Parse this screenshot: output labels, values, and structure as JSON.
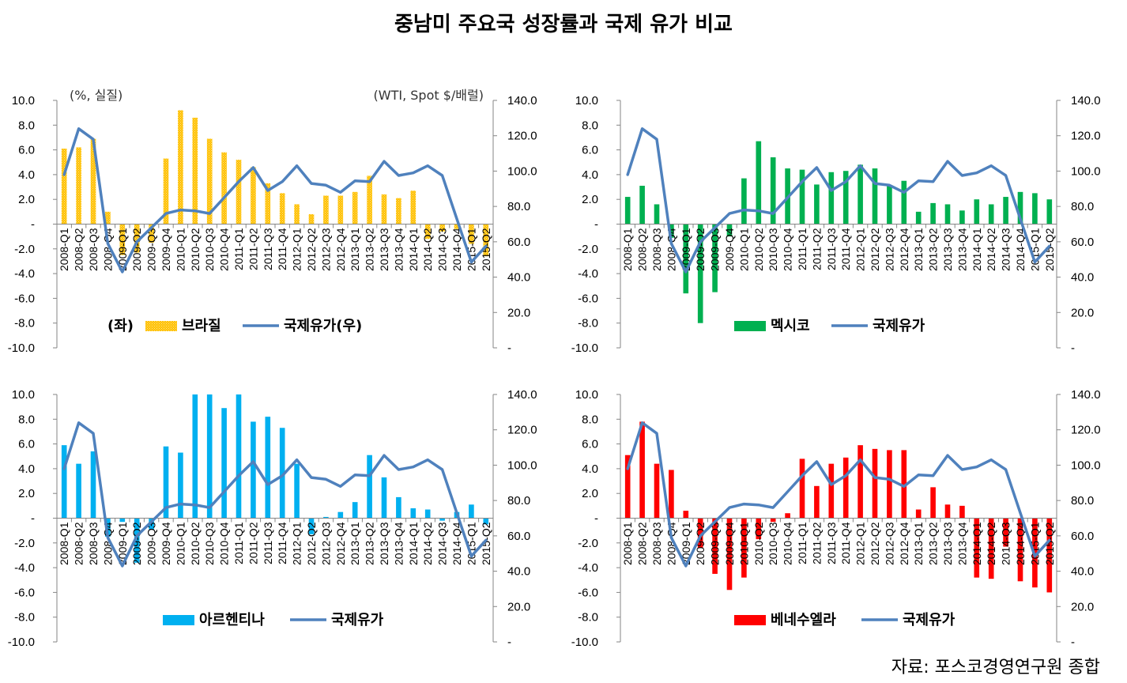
{
  "title": "중남미 주요국 성장률과 국제 유가 비교",
  "source": "자료: 포스코경영연구원 종합",
  "chart_data": [
    {
      "type": "bar",
      "country": "브라질",
      "legend": {
        "prefix": "(좌)",
        "bar_label": "브라질",
        "line_label": "국제유가(우)"
      },
      "left_unit": "(%, 실질)",
      "right_unit": "(WTI, Spot $/배럴)",
      "bar_color": "#FFC000",
      "bar_pattern": true,
      "line_color": "#4F81BD",
      "ylim": [
        -10,
        10
      ],
      "y2lim": [
        0,
        140
      ],
      "left_ticks": [
        "10.0",
        "8.0",
        "6.0",
        "4.0",
        "2.0",
        "-",
        "-2.0",
        "-4.0",
        "-6.0",
        "-8.0",
        "-10.0"
      ],
      "right_ticks": [
        "140.0",
        "120.0",
        "100.0",
        "80.0",
        "60.0",
        "40.0",
        "20.0",
        "-"
      ],
      "categories": [
        "2008-Q1",
        "2008-Q2",
        "2008-Q3",
        "2008-Q4",
        "2009-Q1",
        "2009-Q2",
        "2009-Q3",
        "2009-Q4",
        "2010-Q1",
        "2010-Q2",
        "2010-Q3",
        "2010-Q4",
        "2011-Q1",
        "2011-Q2",
        "2011-Q3",
        "2011-Q4",
        "2012-Q1",
        "2012-Q2",
        "2012-Q3",
        "2012-Q4",
        "2013-Q1",
        "2013-Q2",
        "2013-Q3",
        "2013-Q4",
        "2014-Q1",
        "2014-Q2",
        "2014-Q3",
        "2014-Q4",
        "2015-Q1",
        "2015-Q2"
      ],
      "gdp": [
        6.1,
        6.2,
        6.9,
        1.0,
        -2.5,
        -2.3,
        -1.5,
        5.3,
        9.2,
        8.6,
        6.9,
        5.8,
        5.2,
        4.6,
        3.3,
        2.5,
        1.6,
        0.8,
        2.3,
        2.3,
        2.6,
        3.9,
        2.4,
        2.1,
        2.7,
        -1.2,
        -0.6,
        -0.4,
        -1.6,
        -2.6
      ],
      "oil": [
        98,
        124,
        118,
        59,
        43,
        60,
        68,
        76,
        78,
        77.5,
        76,
        85,
        94,
        102,
        89,
        94,
        103,
        93,
        92,
        88,
        94.5,
        94,
        105.5,
        97.5,
        99,
        103,
        97.5,
        73,
        48.5,
        57.5
      ]
    },
    {
      "type": "bar",
      "country": "멕시코",
      "legend": {
        "prefix": "",
        "bar_label": "멕시코",
        "line_label": "국제유가"
      },
      "left_unit": "",
      "right_unit": "",
      "bar_color": "#00B050",
      "bar_pattern": false,
      "line_color": "#4F81BD",
      "ylim": [
        -10,
        10
      ],
      "y2lim": [
        0,
        140
      ],
      "left_ticks": [
        "10.0",
        "8.0",
        "6.0",
        "4.0",
        "2.0",
        "-",
        "-2.0",
        "-4.0",
        "-6.0",
        "-8.0",
        "-10.0"
      ],
      "right_ticks": [
        "140.0",
        "120.0",
        "100.0",
        "80.0",
        "60.0",
        "40.0",
        "20.0",
        "-"
      ],
      "categories": [
        "2008-Q1",
        "2008-Q2",
        "2008-Q3",
        "2008-Q4",
        "2009-Q1",
        "2009-Q2",
        "2009-Q3",
        "2009-Q4",
        "2010-Q1",
        "2010-Q2",
        "2010-Q3",
        "2010-Q4",
        "2011-Q1",
        "2011-Q2",
        "2011-Q3",
        "2011-Q4",
        "2012-Q1",
        "2012-Q2",
        "2012-Q3",
        "2012-Q4",
        "2013-Q1",
        "2013-Q2",
        "2013-Q3",
        "2013-Q4",
        "2014-Q1",
        "2014-Q2",
        "2014-Q3",
        "2014-Q4",
        "2015-Q1",
        "2015-Q2"
      ],
      "gdp": [
        2.2,
        3.1,
        1.6,
        -1.1,
        -5.6,
        -8.0,
        -5.5,
        -1.0,
        3.7,
        6.7,
        5.4,
        4.5,
        4.4,
        3.2,
        4.2,
        4.3,
        4.8,
        4.5,
        3.1,
        3.5,
        1.0,
        1.7,
        1.6,
        1.1,
        2.0,
        1.6,
        2.2,
        2.6,
        2.5,
        2.0
      ],
      "oil": [
        98,
        124,
        118,
        59,
        43,
        60,
        68,
        76,
        78,
        77.5,
        76,
        85,
        94,
        102,
        89,
        94,
        103,
        93,
        92,
        88,
        94.5,
        94,
        105.5,
        97.5,
        99,
        103,
        97.5,
        73,
        48.5,
        57.5
      ]
    },
    {
      "type": "bar",
      "country": "아르헨티나",
      "legend": {
        "prefix": "",
        "bar_label": "아르헨티나",
        "line_label": "국제유가"
      },
      "left_unit": "",
      "right_unit": "",
      "bar_color": "#00B0F0",
      "bar_pattern": false,
      "line_color": "#4F81BD",
      "ylim": [
        -10,
        10
      ],
      "y2lim": [
        0,
        140
      ],
      "left_ticks": [
        "10.0",
        "8.0",
        "6.0",
        "4.0",
        "2.0",
        "-",
        "-2.0",
        "-4.0",
        "-6.0",
        "-8.0",
        "-10.0"
      ],
      "right_ticks": [
        "140.0",
        "120.0",
        "100.0",
        "80.0",
        "60.0",
        "40.0",
        "20.0",
        "-"
      ],
      "categories": [
        "2008-Q1",
        "2008-Q2",
        "2008-Q3",
        "2008-Q4",
        "2009-Q1",
        "2009-Q2",
        "2009-Q3",
        "2009-Q4",
        "2010-Q1",
        "2010-Q2",
        "2010-Q3",
        "2010-Q4",
        "2011-Q1",
        "2011-Q2",
        "2011-Q3",
        "2011-Q4",
        "2012-Q1",
        "2012-Q2",
        "2012-Q3",
        "2012-Q4",
        "2013-Q1",
        "2013-Q2",
        "2013-Q3",
        "2013-Q4",
        "2014-Q1",
        "2014-Q2",
        "2014-Q3",
        "2014-Q4",
        "2015-Q1",
        "2015-Q2"
      ],
      "gdp": [
        5.9,
        4.4,
        5.4,
        -1.5,
        -0.3,
        -3.6,
        -0.9,
        5.8,
        5.3,
        10.0,
        10.0,
        8.9,
        10.0,
        7.8,
        8.2,
        7.3,
        4.4,
        -1.3,
        0.1,
        0.5,
        1.3,
        5.1,
        3.3,
        1.7,
        0.8,
        0.7,
        -0.2,
        0.5,
        1.1,
        -0.5
      ],
      "oil": [
        98,
        124,
        118,
        59,
        43,
        60,
        68,
        76,
        78,
        77.5,
        76,
        85,
        94,
        102,
        89,
        94,
        103,
        93,
        92,
        88,
        94.5,
        94,
        105.5,
        97.5,
        99,
        103,
        97.5,
        73,
        48.5,
        57.5
      ]
    },
    {
      "type": "bar",
      "country": "베네수엘라",
      "legend": {
        "prefix": "",
        "bar_label": "베네수엘라",
        "line_label": "국제유가"
      },
      "left_unit": "",
      "right_unit": "",
      "bar_color": "#FF0000",
      "bar_pattern": false,
      "line_color": "#4F81BD",
      "ylim": [
        -10,
        10
      ],
      "y2lim": [
        0,
        140
      ],
      "left_ticks": [
        "10.0",
        "8.0",
        "6.0",
        "4.0",
        "2.0",
        "-",
        "-2.0",
        "-4.0",
        "-6.0",
        "-8.0",
        "-10.0"
      ],
      "right_ticks": [
        "140.0",
        "120.0",
        "100.0",
        "80.0",
        "60.0",
        "40.0",
        "20.0",
        "-"
      ],
      "categories": [
        "2008-Q1",
        "2008-Q2",
        "2008-Q3",
        "2008-Q4",
        "2009-Q1",
        "2009-Q2",
        "2009-Q3",
        "2009-Q4",
        "2010-Q1",
        "2010-Q2",
        "2010-Q3",
        "2010-Q4",
        "2011-Q1",
        "2011-Q2",
        "2011-Q3",
        "2011-Q4",
        "2012-Q1",
        "2012-Q2",
        "2012-Q3",
        "2012-Q4",
        "2013-Q1",
        "2013-Q2",
        "2013-Q3",
        "2013-Q4",
        "2014-Q1",
        "2014-Q2",
        "2014-Q3",
        "2014-Q4",
        "2015-Q1",
        "2015-Q2"
      ],
      "gdp": [
        5.1,
        7.8,
        4.4,
        3.9,
        0.6,
        -2.4,
        -4.5,
        -5.8,
        -4.8,
        -1.7,
        -0.3,
        0.4,
        4.8,
        2.6,
        4.4,
        4.9,
        5.9,
        5.6,
        5.5,
        5.5,
        0.7,
        2.5,
        1.1,
        1.0,
        -4.8,
        -4.9,
        -2.3,
        -5.1,
        -5.6,
        -6.0
      ],
      "oil": [
        98,
        124,
        118,
        59,
        43,
        60,
        68,
        76,
        78,
        77.5,
        76,
        85,
        94,
        102,
        89,
        94,
        103,
        93,
        92,
        88,
        94.5,
        94,
        105.5,
        97.5,
        99,
        103,
        97.5,
        73,
        48.5,
        57.5
      ]
    }
  ]
}
